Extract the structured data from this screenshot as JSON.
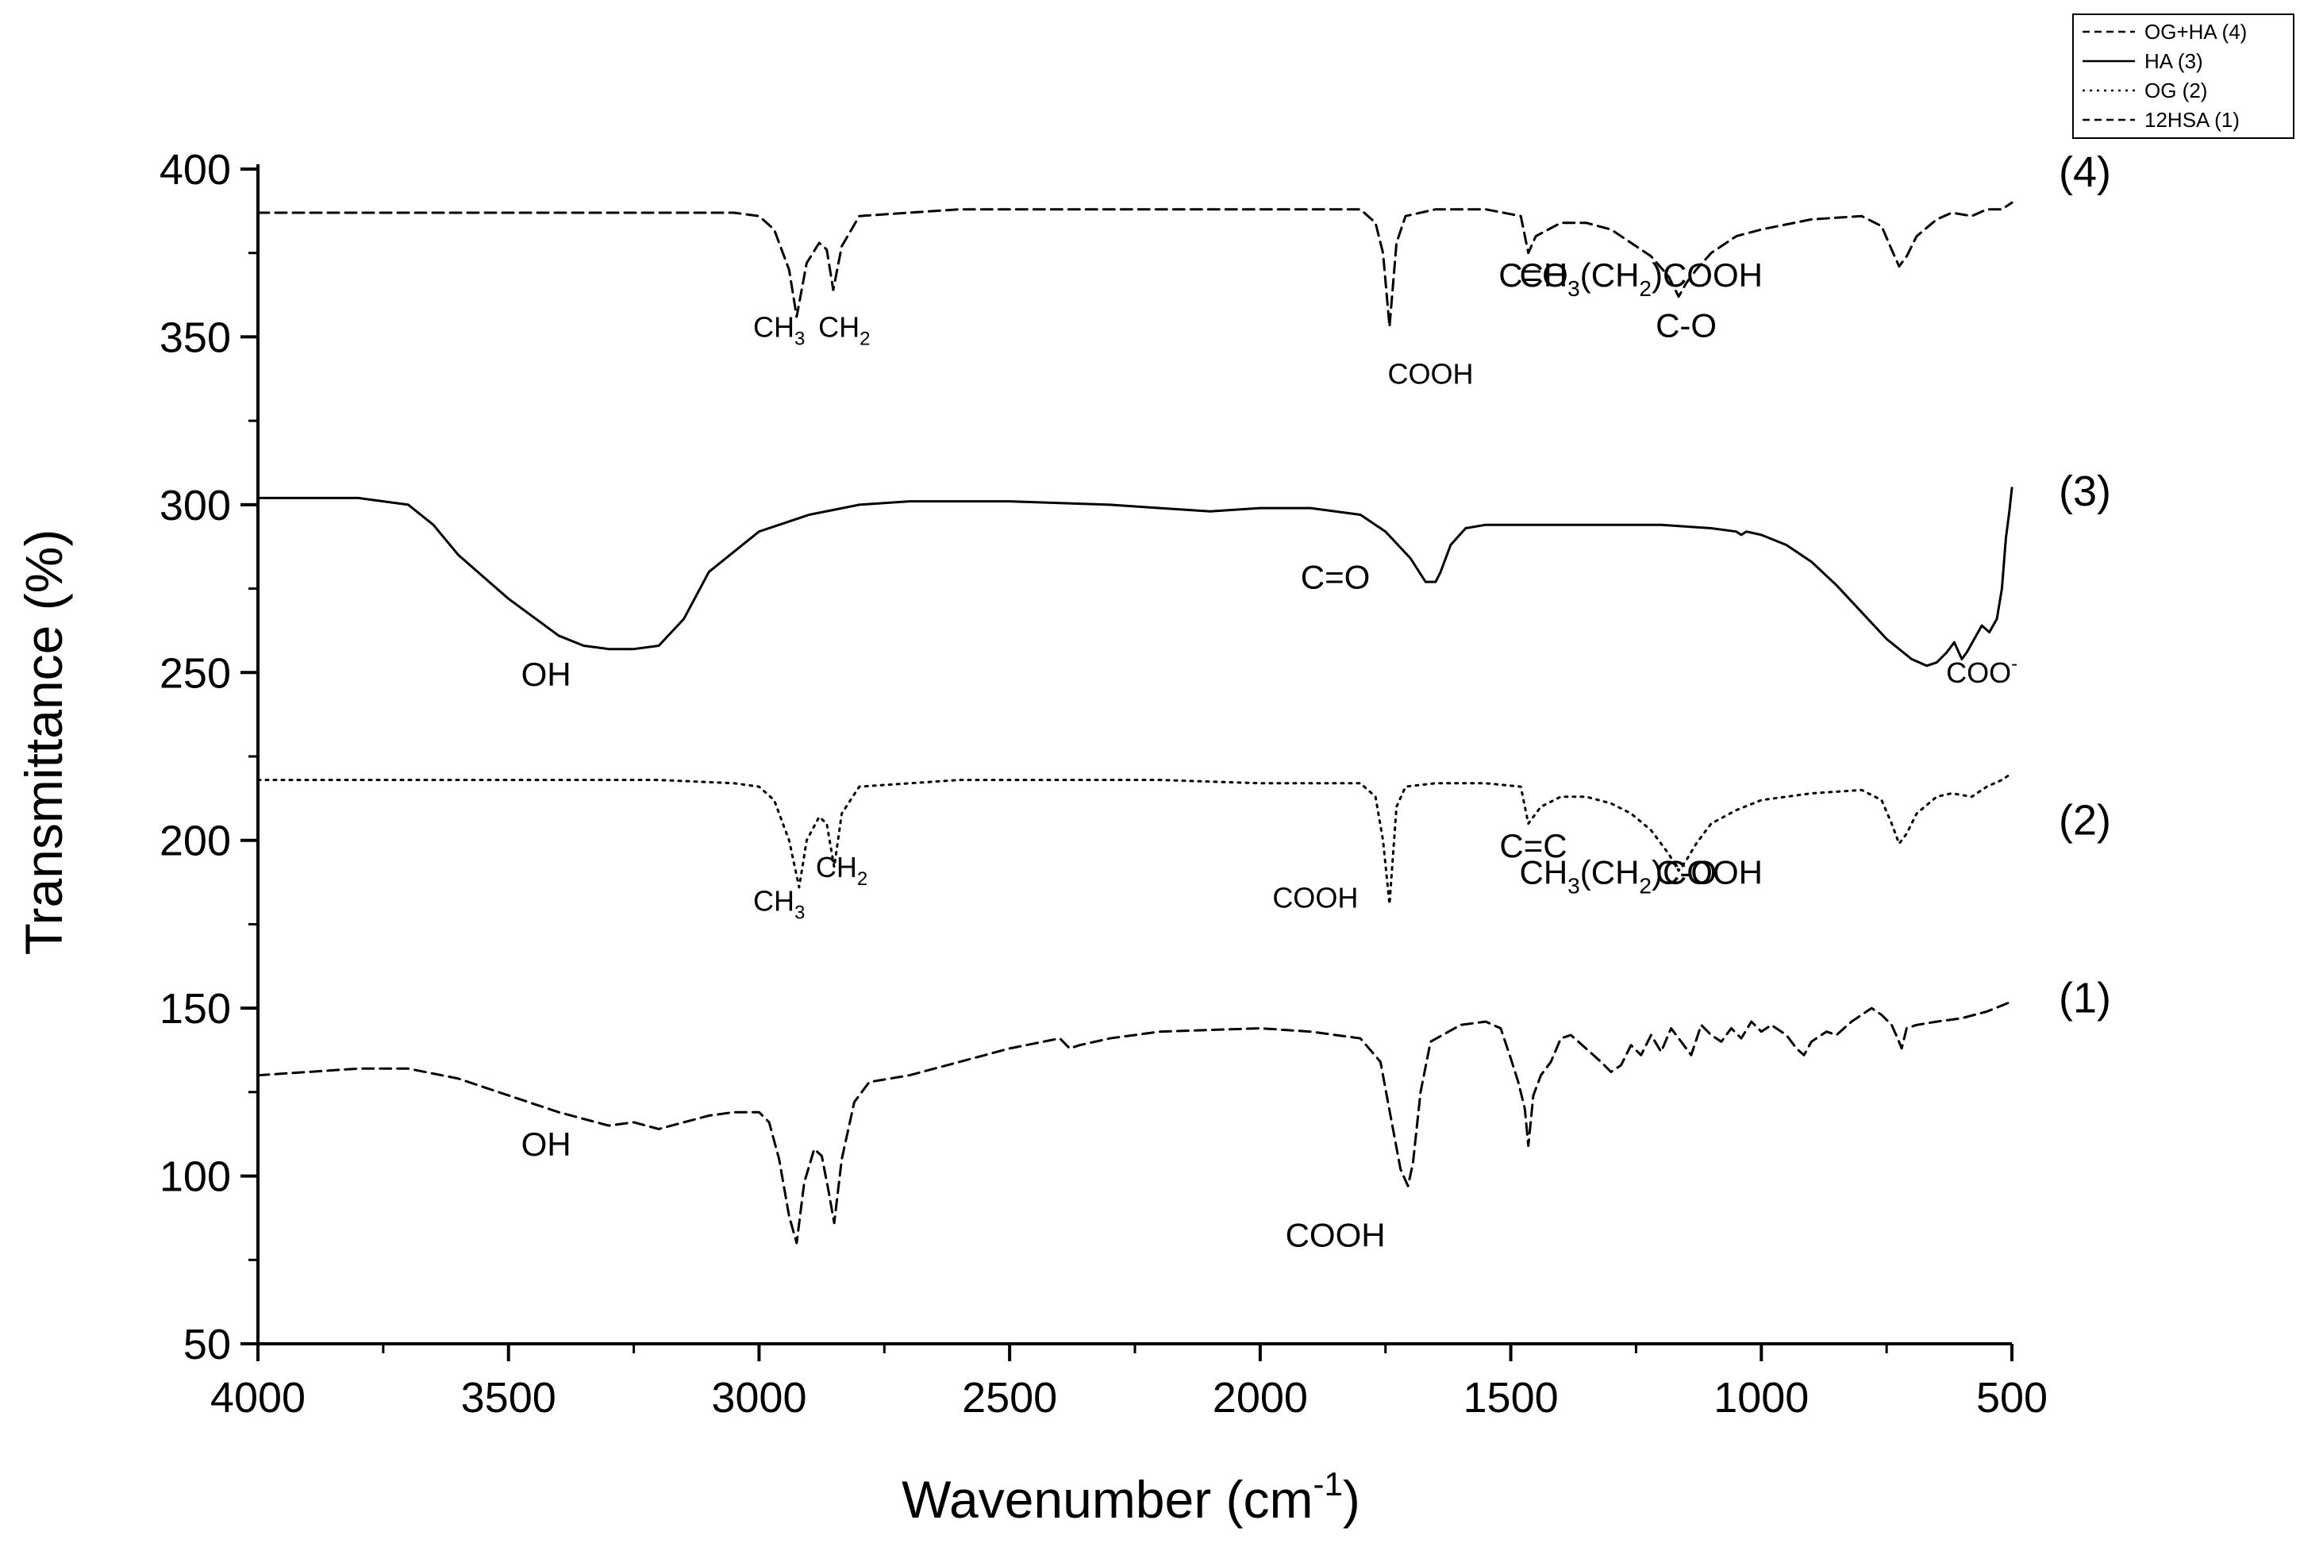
{
  "chart_data": {
    "type": "line",
    "xlabel_main": "Wavenumber (cm",
    "xlabel_sup": "-1",
    "xlabel_end": ")",
    "ylabel": "Transmittance (%)",
    "xlim": [
      4000,
      500
    ],
    "ylim": [
      50,
      400
    ],
    "x_reversed": true,
    "xticks": [
      "4000",
      "3500",
      "3000",
      "2500",
      "2000",
      "1500",
      "1000",
      "500"
    ],
    "yticks": [
      "400",
      "350",
      "300",
      "250",
      "200",
      "150",
      "100",
      "50"
    ],
    "legend": {
      "position": "top-right",
      "entries": [
        {
          "label": "OG+HA (4)",
          "style": "dashed"
        },
        {
          "label": "HA (3)",
          "style": "solid"
        },
        {
          "label": "OG (2)",
          "style": "dotted"
        },
        {
          "label": "12HSA (1)",
          "style": "dashed"
        }
      ]
    },
    "series": [
      {
        "id": "s4",
        "style": "dashed",
        "end_label": "(4)",
        "x": [
          4000,
          3800,
          3500,
          3200,
          3050,
          3000,
          2970,
          2940,
          2925,
          2905,
          2880,
          2865,
          2852,
          2835,
          2800,
          2600,
          2400,
          2200,
          2000,
          1800,
          1770,
          1755,
          1742,
          1728,
          1710,
          1650,
          1550,
          1480,
          1465,
          1450,
          1400,
          1350,
          1300,
          1260,
          1220,
          1185,
          1165,
          1150,
          1130,
          1100,
          1050,
          1000,
          900,
          800,
          760,
          740,
          725,
          710,
          690,
          650,
          620,
          580,
          550,
          520,
          500
        ],
        "y": [
          387,
          387,
          387,
          387,
          387,
          386,
          382,
          370,
          356,
          372,
          378,
          376,
          364,
          377,
          386,
          388,
          388,
          388,
          388,
          388,
          384,
          375,
          353,
          378,
          386,
          388,
          388,
          386,
          375,
          380,
          384,
          384,
          382,
          378,
          374,
          368,
          362,
          366,
          370,
          375,
          380,
          382,
          385,
          386,
          383,
          376,
          371,
          374,
          380,
          385,
          387,
          386,
          388,
          388,
          390
        ]
      },
      {
        "id": "s3",
        "style": "solid",
        "end_label": "(3)",
        "x": [
          4000,
          3800,
          3700,
          3650,
          3600,
          3500,
          3400,
          3350,
          3300,
          3250,
          3200,
          3150,
          3100,
          3000,
          2900,
          2800,
          2700,
          2500,
          2300,
          2200,
          2100,
          2000,
          1900,
          1800,
          1750,
          1700,
          1670,
          1650,
          1640,
          1620,
          1590,
          1550,
          1500,
          1400,
          1300,
          1200,
          1100,
          1050,
          1040,
          1030,
          1000,
          950,
          900,
          850,
          800,
          750,
          700,
          670,
          650,
          630,
          615,
          600,
          590,
          575,
          560,
          545,
          530,
          520,
          512,
          505,
          500
        ],
        "y": [
          302,
          302,
          300,
          294,
          285,
          272,
          261,
          258,
          257,
          257,
          258,
          266,
          280,
          292,
          297,
          300,
          301,
          301,
          300,
          299,
          298,
          299,
          299,
          297,
          292,
          284,
          277,
          277,
          280,
          288,
          293,
          294,
          294,
          294,
          294,
          294,
          293,
          292,
          291,
          292,
          291,
          288,
          283,
          276,
          268,
          260,
          254,
          252,
          253,
          256,
          259,
          254,
          256,
          260,
          264,
          262,
          266,
          275,
          290,
          298,
          305
        ]
      },
      {
        "id": "s2",
        "style": "dotted",
        "end_label": "(2)",
        "x": [
          4000,
          3800,
          3500,
          3200,
          3050,
          3000,
          2970,
          2940,
          2920,
          2905,
          2880,
          2865,
          2850,
          2835,
          2800,
          2600,
          2400,
          2200,
          2000,
          1800,
          1770,
          1755,
          1742,
          1728,
          1710,
          1650,
          1550,
          1480,
          1465,
          1455,
          1440,
          1400,
          1350,
          1300,
          1260,
          1220,
          1185,
          1165,
          1150,
          1130,
          1100,
          1050,
          1000,
          900,
          800,
          760,
          740,
          725,
          710,
          690,
          650,
          620,
          580,
          550,
          520,
          500
        ],
        "y": [
          218,
          218,
          218,
          218,
          217,
          216,
          212,
          200,
          186,
          200,
          207,
          205,
          192,
          208,
          216,
          218,
          218,
          218,
          217,
          217,
          213,
          200,
          181,
          210,
          216,
          217,
          217,
          216,
          205,
          207,
          210,
          213,
          213,
          211,
          208,
          203,
          196,
          191,
          194,
          199,
          205,
          209,
          212,
          214,
          215,
          212,
          205,
          199,
          202,
          208,
          213,
          214,
          213,
          216,
          218,
          220
        ]
      },
      {
        "id": "s1",
        "style": "dashed",
        "end_label": "(1)",
        "x": [
          4000,
          3900,
          3800,
          3700,
          3600,
          3500,
          3400,
          3300,
          3250,
          3200,
          3150,
          3100,
          3050,
          3000,
          2980,
          2960,
          2940,
          2925,
          2910,
          2890,
          2875,
          2862,
          2850,
          2835,
          2810,
          2780,
          2700,
          2600,
          2500,
          2400,
          2380,
          2360,
          2300,
          2200,
          2000,
          1900,
          1800,
          1760,
          1740,
          1720,
          1705,
          1695,
          1680,
          1660,
          1600,
          1550,
          1520,
          1500,
          1485,
          1472,
          1465,
          1455,
          1440,
          1420,
          1400,
          1380,
          1350,
          1320,
          1300,
          1280,
          1260,
          1240,
          1220,
          1200,
          1180,
          1160,
          1140,
          1120,
          1100,
          1080,
          1060,
          1040,
          1020,
          1000,
          980,
          950,
          930,
          915,
          900,
          870,
          850,
          820,
          800,
          780,
          760,
          740,
          728,
          720,
          710,
          690,
          650,
          600,
          550,
          500
        ],
        "y": [
          130,
          131,
          132,
          132,
          129,
          124,
          119,
          115,
          116,
          114,
          116,
          118,
          119,
          119,
          116,
          105,
          88,
          80,
          98,
          108,
          106,
          96,
          86,
          105,
          122,
          128,
          130,
          134,
          138,
          141,
          138,
          139,
          141,
          143,
          144,
          143,
          141,
          134,
          118,
          102,
          97,
          104,
          125,
          140,
          145,
          146,
          144,
          135,
          128,
          120,
          109,
          124,
          130,
          134,
          141,
          142,
          138,
          134,
          131,
          133,
          139,
          136,
          142,
          137,
          144,
          140,
          136,
          145,
          142,
          140,
          144,
          141,
          146,
          143,
          145,
          142,
          138,
          136,
          140,
          143,
          142,
          146,
          148,
          150,
          148,
          145,
          141,
          138,
          144,
          145,
          146,
          147,
          149,
          152
        ]
      }
    ],
    "annotations": [
      {
        "text": "CH",
        "sub": "3",
        "after": "",
        "x": 2960,
        "y": 350,
        "size": "small"
      },
      {
        "text": "CH",
        "sub": "2",
        "after": "",
        "x": 2830,
        "y": 350,
        "size": "small"
      },
      {
        "text": "COOH",
        "sub": "",
        "after": "",
        "x": 1660,
        "y": 336,
        "size": "small"
      },
      {
        "text": "C=O",
        "sub": "",
        "after": "",
        "x": 1455,
        "y": 365,
        "size": "normal"
      },
      {
        "text": "C-O",
        "sub": "",
        "after": "",
        "x": 1150,
        "y": 350,
        "size": "normal"
      },
      {
        "text": "CH",
        "sub": "3",
        "after": "(CH",
        "sub2": "2",
        "after2": ")COOH",
        "x": 1240,
        "y": 365,
        "size": "normal"
      },
      {
        "text": "OH",
        "sub": "",
        "after": "",
        "x": 3425,
        "y": 246,
        "size": "normal"
      },
      {
        "text": "C=O",
        "sub": "",
        "after": "",
        "x": 1850,
        "y": 275,
        "size": "normal"
      },
      {
        "text": "COO",
        "sub": "",
        "sup": "-",
        "after": "",
        "x": 560,
        "y": 247,
        "size": "small"
      },
      {
        "text": "CH",
        "sub": "3",
        "after": "",
        "x": 2960,
        "y": 179,
        "size": "small"
      },
      {
        "text": "CH",
        "sub": "2",
        "after": "",
        "x": 2835,
        "y": 189,
        "size": "small"
      },
      {
        "text": "COOH",
        "sub": "",
        "after": "",
        "x": 1890,
        "y": 180,
        "size": "small"
      },
      {
        "text": "C=C",
        "sub": "",
        "after": "",
        "x": 1455,
        "y": 195,
        "size": "normal"
      },
      {
        "text": "C-O",
        "sub": "",
        "after": "",
        "x": 1150,
        "y": 187,
        "size": "normal"
      },
      {
        "text": "CH",
        "sub": "3",
        "after": "(CH",
        "sub2": "2",
        "after2": ")COOH",
        "x": 1240,
        "y": 187,
        "size": "normal"
      },
      {
        "text": "OH",
        "sub": "",
        "after": "",
        "x": 3425,
        "y": 106,
        "size": "normal"
      },
      {
        "text": "COOH",
        "sub": "",
        "after": "",
        "x": 1850,
        "y": 79,
        "size": "normal"
      }
    ]
  }
}
